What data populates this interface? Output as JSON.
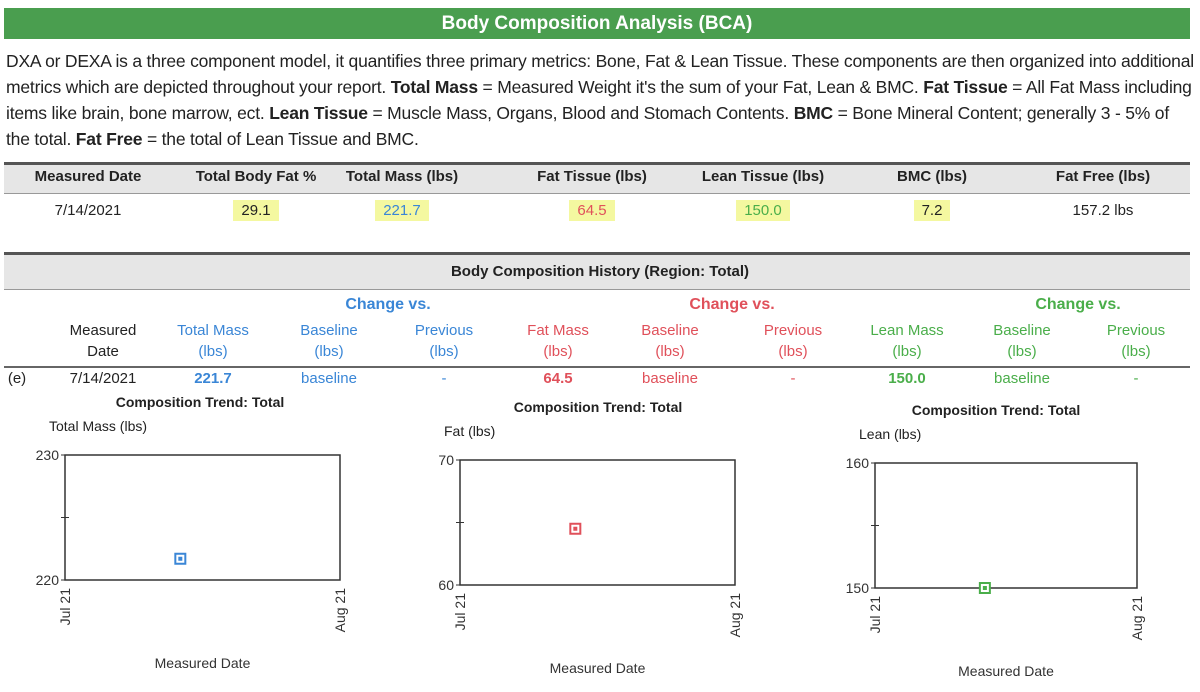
{
  "title": "Body Composition Analysis (BCA)",
  "intro": [
    {
      "t": "DXA or DEXA is a three component model, it quantifies three primary metrics: Bone, Fat & Lean Tissue. These components are then organized into additional metrics which are depicted throughout your report. "
    },
    {
      "b": "Total Mass"
    },
    {
      "t": " = Measured Weight it's the sum of your Fat, Lean & BMC. "
    },
    {
      "b": "Fat Tissue"
    },
    {
      "t": " = All Fat Mass including items like brain, bone marrow, ect. "
    },
    {
      "b": "Lean Tissue"
    },
    {
      "t": " = Muscle Mass, Organs, Blood and Stomach Contents.  "
    },
    {
      "b": "BMC"
    },
    {
      "t": " = Bone Mineral Content; generally 3 - 5% of the total. "
    },
    {
      "b": "Fat Free"
    },
    {
      "t": " = the total of Lean Tissue and BMC."
    }
  ],
  "summary": {
    "headers": [
      "Measured Date",
      "Total Body Fat %",
      "Total Mass (lbs)",
      "Fat Tissue (lbs)",
      "Lean Tissue (lbs)",
      "BMC (lbs)",
      "Fat Free (lbs)"
    ],
    "row": [
      "7/14/2021",
      "29.1",
      "221.7",
      "64.5",
      "150.0",
      "7.2",
      "157.2 lbs"
    ]
  },
  "history": {
    "title": "Body Composition History (Region: Total)",
    "change_label": "Change vs.",
    "measured": "Measured",
    "date": "Date",
    "cols": [
      {
        "l1": "Total Mass",
        "l2": "(lbs)"
      },
      {
        "l1": "Baseline",
        "l2": "(lbs)"
      },
      {
        "l1": "Previous",
        "l2": "(lbs)"
      },
      {
        "l1": "Fat Mass",
        "l2": "(lbs)"
      },
      {
        "l1": "Baseline",
        "l2": "(lbs)"
      },
      {
        "l1": "Previous",
        "l2": "(lbs)"
      },
      {
        "l1": "Lean Mass",
        "l2": "(lbs)"
      },
      {
        "l1": "Baseline",
        "l2": "(lbs)"
      },
      {
        "l1": "Previous",
        "l2": "(lbs)"
      }
    ],
    "row": {
      "marker": "(e)",
      "date": "7/14/2021",
      "values": [
        "221.7",
        "baseline",
        "-",
        "64.5",
        "baseline",
        "-",
        "150.0",
        "baseline",
        "-"
      ]
    }
  },
  "colors": {
    "total": "#3a86d6",
    "fat": "#e0505a",
    "lean": "#4aae4a",
    "header_green": "#4a9e4f"
  },
  "chart_data": [
    {
      "type": "scatter",
      "title": "Composition Trend: Total",
      "ylabel": "Total Mass (lbs)",
      "xlabel": "Measured Date",
      "xticks": [
        "Jul 21",
        "Aug 21"
      ],
      "xlim": [
        "2021-07-01",
        "2021-08-01"
      ],
      "ylim": [
        220,
        230
      ],
      "yticks": [
        "220",
        "230"
      ],
      "points": [
        {
          "x": "2021-07-14",
          "y": 221.7
        }
      ],
      "color": "#3a86d6"
    },
    {
      "type": "scatter",
      "title": "Composition Trend: Total",
      "ylabel": "Fat (lbs)",
      "xlabel": "Measured Date",
      "xticks": [
        "Jul 21",
        "Aug 21"
      ],
      "xlim": [
        "2021-07-01",
        "2021-08-01"
      ],
      "ylim": [
        60,
        70
      ],
      "yticks": [
        "60",
        "70"
      ],
      "points": [
        {
          "x": "2021-07-14",
          "y": 64.5
        }
      ],
      "color": "#e0505a"
    },
    {
      "type": "scatter",
      "title": "Composition Trend: Total",
      "ylabel": "Lean (lbs)",
      "xlabel": "Measured Date",
      "xticks": [
        "Jul 21",
        "Aug 21"
      ],
      "xlim": [
        "2021-07-01",
        "2021-08-01"
      ],
      "ylim": [
        150,
        160
      ],
      "yticks": [
        "150",
        "160"
      ],
      "points": [
        {
          "x": "2021-07-14",
          "y": 150.0
        }
      ],
      "color": "#4aae4a"
    }
  ]
}
